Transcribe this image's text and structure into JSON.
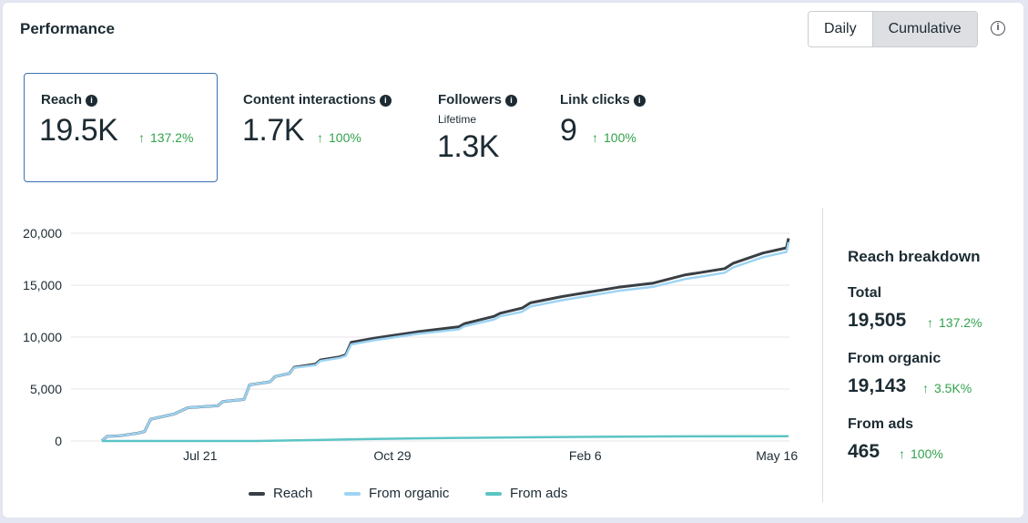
{
  "header": {
    "title": "Performance"
  },
  "view_toggle": {
    "daily": "Daily",
    "cumulative": "Cumulative",
    "selected": "Cumulative"
  },
  "icons": {
    "info": "info-icon",
    "up_arrow": "↑"
  },
  "metrics": {
    "reach": {
      "label": "Reach",
      "value": "19.5K",
      "delta": "137.2%"
    },
    "content_interactions": {
      "label": "Content interactions",
      "value": "1.7K",
      "delta": "100%"
    },
    "followers": {
      "label": "Followers",
      "sublabel": "Lifetime",
      "value": "1.3K"
    },
    "link_clicks": {
      "label": "Link clicks",
      "value": "9",
      "delta": "100%"
    }
  },
  "breakdown": {
    "title": "Reach breakdown",
    "total": {
      "label": "Total",
      "value": "19,505",
      "delta": "137.2%"
    },
    "organic": {
      "label": "From organic",
      "value": "19,143",
      "delta": "3.5K%"
    },
    "ads": {
      "label": "From ads",
      "value": "465",
      "delta": "100%"
    }
  },
  "colors": {
    "reach": "#3a3f45",
    "organic": "#9dd4f3",
    "ads": "#5cc4c4",
    "positive": "#31a24c",
    "selected_border": "#3b6fb6"
  },
  "chart_data": {
    "type": "line",
    "x_range": [
      0,
      100
    ],
    "ylim": [
      0,
      20000
    ],
    "yticks": [
      20000,
      15000,
      10000,
      5000,
      0
    ],
    "ytick_labels": [
      "20,000",
      "15,000",
      "10,000",
      "5,000",
      "0"
    ],
    "xticks": [
      {
        "x": 14.3,
        "label": "Jul 21"
      },
      {
        "x": 42.3,
        "label": "Oct 29"
      },
      {
        "x": 70.4,
        "label": "Feb 6"
      },
      {
        "x": 98.3,
        "label": "May 16"
      }
    ],
    "legend": [
      "Reach",
      "From organic",
      "From ads"
    ],
    "series": [
      {
        "name": "Reach",
        "x": [
          0,
          0.7,
          2.6,
          5.2,
          6.2,
          7.1,
          10.5,
          12.5,
          16.9,
          17.6,
          20.7,
          21.5,
          24.5,
          25.2,
          27.3,
          28.0,
          31.1,
          31.8,
          34.6,
          35.5,
          36.3,
          39.7,
          45.8,
          52.0,
          52.8,
          57.1,
          58.0,
          61.2,
          62.4,
          67.0,
          75.2,
          80.3,
          85.0,
          87.0,
          90.7,
          91.9,
          96.3,
          99.7,
          100
        ],
        "values": [
          0,
          450,
          500,
          750,
          900,
          2100,
          2600,
          3200,
          3400,
          3800,
          4000,
          5400,
          5700,
          6200,
          6500,
          7100,
          7400,
          7800,
          8100,
          8300,
          9500,
          9900,
          10500,
          11000,
          11300,
          12000,
          12300,
          12800,
          13300,
          13900,
          14800,
          15200,
          16000,
          16200,
          16600,
          17100,
          18100,
          18600,
          19505
        ]
      },
      {
        "name": "From organic",
        "x": [
          0,
          0.7,
          2.6,
          5.2,
          6.2,
          7.1,
          10.5,
          12.5,
          16.9,
          17.6,
          20.7,
          21.5,
          24.5,
          25.2,
          27.3,
          28.0,
          31.1,
          31.8,
          34.6,
          35.5,
          36.3,
          39.7,
          45.8,
          52.0,
          52.8,
          57.1,
          58.0,
          61.2,
          62.4,
          67.0,
          75.2,
          80.3,
          85.0,
          87.0,
          90.7,
          91.9,
          96.3,
          99.7,
          100
        ],
        "values": [
          0,
          450,
          500,
          750,
          900,
          2100,
          2600,
          3200,
          3400,
          3800,
          4000,
          5400,
          5700,
          6200,
          6500,
          7050,
          7300,
          7700,
          8000,
          8200,
          9300,
          9700,
          10300,
          10750,
          11050,
          11700,
          12000,
          12450,
          12950,
          13550,
          14450,
          14850,
          15600,
          15800,
          16200,
          16700,
          17700,
          18200,
          19143
        ]
      },
      {
        "name": "From ads",
        "x": [
          0,
          22.5,
          31.5,
          39.7,
          45.8,
          52.0,
          61.2,
          75.2,
          85.0,
          100
        ],
        "values": [
          0,
          0,
          100,
          200,
          250,
          300,
          350,
          420,
          450,
          465
        ]
      }
    ]
  }
}
